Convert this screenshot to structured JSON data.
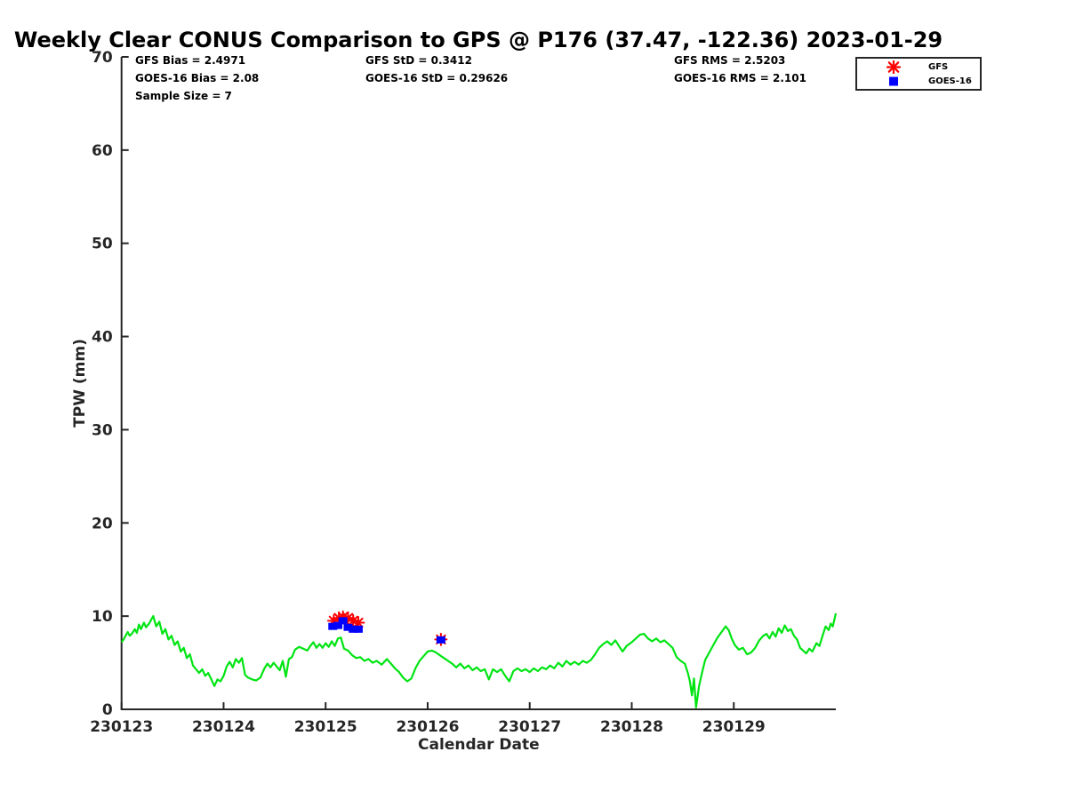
{
  "title": "Weekly Clear CONUS Comparison to GPS @ P176 (37.47, -122.36) 2023-01-29",
  "stats": {
    "bias_gfs": "GFS Bias = 2.4971",
    "bias_goes": "GOES-16 Bias = 2.08",
    "sample_size": "Sample Size = 7",
    "std_gfs": "GFS StD = 0.3412",
    "std_goes": "GOES-16 StD = 0.29626",
    "rms_gfs": "GFS RMS = 2.5203",
    "rms_goes": "GOES-16 RMS = 2.101"
  },
  "legend": {
    "items": [
      {
        "label": "GFS",
        "marker": "asterisk",
        "color": "#ff0000"
      },
      {
        "label": "GOES-16",
        "marker": "square",
        "color": "#0000ff"
      }
    ]
  },
  "colors": {
    "gps_line": "#00e412",
    "gfs_marker": "#ff0000",
    "goes_marker": "#0000ff",
    "axis": "#262626",
    "text": "#000000"
  },
  "chart_data": {
    "type": "line",
    "title": "Weekly Clear CONUS Comparison to GPS @ P176 (37.47, -122.36) 2023-01-29",
    "xlabel": "Calendar Date",
    "ylabel": "TPW (mm)",
    "ylim": [
      0,
      70
    ],
    "yticks": [
      0,
      10,
      20,
      30,
      40,
      50,
      60,
      70
    ],
    "xticks": [
      "230123",
      "230124",
      "230125",
      "230126",
      "230127",
      "230128",
      "230129"
    ],
    "x_axis_span_days": 7,
    "grid": false,
    "legend_position": "top-right",
    "series": [
      {
        "name": "GPS",
        "type": "line",
        "color": "#00e412",
        "points": [
          [
            0.0,
            7.2
          ],
          [
            0.02,
            7.5
          ],
          [
            0.04,
            7.9
          ],
          [
            0.06,
            8.3
          ],
          [
            0.08,
            7.9
          ],
          [
            0.1,
            8.1
          ],
          [
            0.13,
            8.6
          ],
          [
            0.15,
            8.2
          ],
          [
            0.17,
            9.1
          ],
          [
            0.19,
            8.6
          ],
          [
            0.22,
            9.3
          ],
          [
            0.24,
            8.8
          ],
          [
            0.27,
            9.2
          ],
          [
            0.29,
            9.6
          ],
          [
            0.31,
            10.0
          ],
          [
            0.34,
            8.9
          ],
          [
            0.37,
            9.4
          ],
          [
            0.4,
            8.1
          ],
          [
            0.43,
            8.6
          ],
          [
            0.46,
            7.5
          ],
          [
            0.49,
            7.9
          ],
          [
            0.52,
            6.9
          ],
          [
            0.55,
            7.3
          ],
          [
            0.58,
            6.2
          ],
          [
            0.61,
            6.6
          ],
          [
            0.64,
            5.5
          ],
          [
            0.67,
            5.9
          ],
          [
            0.7,
            4.7
          ],
          [
            0.73,
            4.3
          ],
          [
            0.76,
            3.9
          ],
          [
            0.79,
            4.3
          ],
          [
            0.82,
            3.6
          ],
          [
            0.85,
            3.9
          ],
          [
            0.88,
            3.2
          ],
          [
            0.91,
            2.5
          ],
          [
            0.94,
            3.2
          ],
          [
            0.97,
            3.0
          ],
          [
            1.0,
            3.6
          ],
          [
            1.03,
            4.6
          ],
          [
            1.06,
            5.1
          ],
          [
            1.09,
            4.5
          ],
          [
            1.12,
            5.4
          ],
          [
            1.15,
            5.0
          ],
          [
            1.18,
            5.5
          ],
          [
            1.21,
            3.7
          ],
          [
            1.24,
            3.4
          ],
          [
            1.28,
            3.2
          ],
          [
            1.32,
            3.1
          ],
          [
            1.36,
            3.4
          ],
          [
            1.4,
            4.4
          ],
          [
            1.43,
            4.9
          ],
          [
            1.46,
            4.5
          ],
          [
            1.49,
            5.0
          ],
          [
            1.52,
            4.6
          ],
          [
            1.55,
            4.2
          ],
          [
            1.58,
            5.2
          ],
          [
            1.61,
            3.5
          ],
          [
            1.64,
            5.4
          ],
          [
            1.67,
            5.6
          ],
          [
            1.7,
            6.4
          ],
          [
            1.74,
            6.7
          ],
          [
            1.78,
            6.5
          ],
          [
            1.82,
            6.3
          ],
          [
            1.85,
            6.8
          ],
          [
            1.88,
            7.2
          ],
          [
            1.91,
            6.6
          ],
          [
            1.94,
            7.0
          ],
          [
            1.97,
            6.6
          ],
          [
            2.0,
            7.1
          ],
          [
            2.03,
            6.7
          ],
          [
            2.06,
            7.3
          ],
          [
            2.09,
            6.8
          ],
          [
            2.12,
            7.6
          ],
          [
            2.15,
            7.7
          ],
          [
            2.18,
            6.5
          ],
          [
            2.22,
            6.3
          ],
          [
            2.26,
            5.8
          ],
          [
            2.3,
            5.5
          ],
          [
            2.34,
            5.6
          ],
          [
            2.38,
            5.2
          ],
          [
            2.42,
            5.4
          ],
          [
            2.46,
            5.0
          ],
          [
            2.5,
            5.2
          ],
          [
            2.55,
            4.8
          ],
          [
            2.6,
            5.4
          ],
          [
            2.64,
            4.9
          ],
          [
            2.68,
            4.4
          ],
          [
            2.72,
            4.0
          ],
          [
            2.76,
            3.4
          ],
          [
            2.8,
            3.0
          ],
          [
            2.84,
            3.3
          ],
          [
            2.88,
            4.4
          ],
          [
            2.92,
            5.2
          ],
          [
            2.96,
            5.7
          ],
          [
            3.0,
            6.2
          ],
          [
            3.04,
            6.3
          ],
          [
            3.08,
            6.1
          ],
          [
            3.12,
            5.8
          ],
          [
            3.16,
            5.5
          ],
          [
            3.2,
            5.2
          ],
          [
            3.24,
            4.9
          ],
          [
            3.28,
            4.5
          ],
          [
            3.32,
            4.9
          ],
          [
            3.36,
            4.4
          ],
          [
            3.4,
            4.7
          ],
          [
            3.44,
            4.2
          ],
          [
            3.48,
            4.5
          ],
          [
            3.52,
            4.1
          ],
          [
            3.56,
            4.3
          ],
          [
            3.6,
            3.2
          ],
          [
            3.64,
            4.3
          ],
          [
            3.68,
            4.0
          ],
          [
            3.72,
            4.3
          ],
          [
            3.76,
            3.6
          ],
          [
            3.8,
            3.0
          ],
          [
            3.84,
            4.1
          ],
          [
            3.88,
            4.4
          ],
          [
            3.92,
            4.1
          ],
          [
            3.96,
            4.3
          ],
          [
            4.0,
            4.0
          ],
          [
            4.04,
            4.4
          ],
          [
            4.08,
            4.1
          ],
          [
            4.12,
            4.5
          ],
          [
            4.16,
            4.3
          ],
          [
            4.2,
            4.7
          ],
          [
            4.24,
            4.4
          ],
          [
            4.28,
            5.0
          ],
          [
            4.32,
            4.6
          ],
          [
            4.36,
            5.2
          ],
          [
            4.4,
            4.8
          ],
          [
            4.44,
            5.1
          ],
          [
            4.48,
            4.8
          ],
          [
            4.52,
            5.2
          ],
          [
            4.56,
            5.0
          ],
          [
            4.6,
            5.3
          ],
          [
            4.64,
            5.9
          ],
          [
            4.68,
            6.6
          ],
          [
            4.72,
            7.0
          ],
          [
            4.76,
            7.3
          ],
          [
            4.8,
            6.9
          ],
          [
            4.84,
            7.4
          ],
          [
            4.88,
            6.7
          ],
          [
            4.91,
            6.2
          ],
          [
            4.95,
            6.8
          ],
          [
            5.0,
            7.2
          ],
          [
            5.04,
            7.6
          ],
          [
            5.08,
            8.0
          ],
          [
            5.12,
            8.1
          ],
          [
            5.16,
            7.6
          ],
          [
            5.2,
            7.3
          ],
          [
            5.24,
            7.6
          ],
          [
            5.28,
            7.2
          ],
          [
            5.32,
            7.4
          ],
          [
            5.36,
            7.0
          ],
          [
            5.4,
            6.6
          ],
          [
            5.44,
            5.6
          ],
          [
            5.48,
            5.2
          ],
          [
            5.52,
            4.9
          ],
          [
            5.55,
            3.9
          ],
          [
            5.57,
            3.0
          ],
          [
            5.59,
            1.5
          ],
          [
            5.61,
            3.3
          ],
          [
            5.63,
            0.2
          ],
          [
            5.66,
            2.5
          ],
          [
            5.69,
            4.0
          ],
          [
            5.72,
            5.3
          ],
          [
            5.76,
            6.1
          ],
          [
            5.8,
            6.9
          ],
          [
            5.84,
            7.7
          ],
          [
            5.88,
            8.3
          ],
          [
            5.92,
            8.9
          ],
          [
            5.95,
            8.5
          ],
          [
            5.98,
            7.6
          ],
          [
            6.01,
            6.9
          ],
          [
            6.05,
            6.4
          ],
          [
            6.09,
            6.6
          ],
          [
            6.13,
            5.9
          ],
          [
            6.17,
            6.1
          ],
          [
            6.21,
            6.6
          ],
          [
            6.25,
            7.4
          ],
          [
            6.29,
            7.9
          ],
          [
            6.32,
            8.1
          ],
          [
            6.35,
            7.6
          ],
          [
            6.38,
            8.3
          ],
          [
            6.41,
            7.8
          ],
          [
            6.44,
            8.7
          ],
          [
            6.47,
            8.2
          ],
          [
            6.5,
            9.0
          ],
          [
            6.53,
            8.4
          ],
          [
            6.56,
            8.6
          ],
          [
            6.59,
            7.9
          ],
          [
            6.62,
            7.5
          ],
          [
            6.65,
            6.6
          ],
          [
            6.68,
            6.3
          ],
          [
            6.71,
            6.0
          ],
          [
            6.74,
            6.5
          ],
          [
            6.77,
            6.2
          ],
          [
            6.81,
            7.1
          ],
          [
            6.84,
            6.8
          ],
          [
            6.87,
            7.9
          ],
          [
            6.9,
            8.9
          ],
          [
            6.93,
            8.5
          ],
          [
            6.95,
            9.2
          ],
          [
            6.97,
            8.9
          ],
          [
            7.0,
            10.3
          ]
        ]
      },
      {
        "name": "GFS",
        "type": "scatter",
        "marker": "asterisk",
        "color": "#ff0000",
        "points": [
          [
            2.08,
            9.5
          ],
          [
            2.13,
            9.8
          ],
          [
            2.17,
            9.9
          ],
          [
            2.22,
            9.8
          ],
          [
            2.27,
            9.5
          ],
          [
            2.32,
            9.3
          ],
          [
            3.13,
            7.5
          ]
        ]
      },
      {
        "name": "GOES-16",
        "type": "scatter",
        "marker": "square",
        "color": "#0000ff",
        "points": [
          [
            2.07,
            8.9
          ],
          [
            2.12,
            9.0
          ],
          [
            2.17,
            9.5
          ],
          [
            2.22,
            8.8
          ],
          [
            2.27,
            8.6
          ],
          [
            2.32,
            8.6
          ],
          [
            3.13,
            7.45
          ]
        ]
      }
    ]
  }
}
